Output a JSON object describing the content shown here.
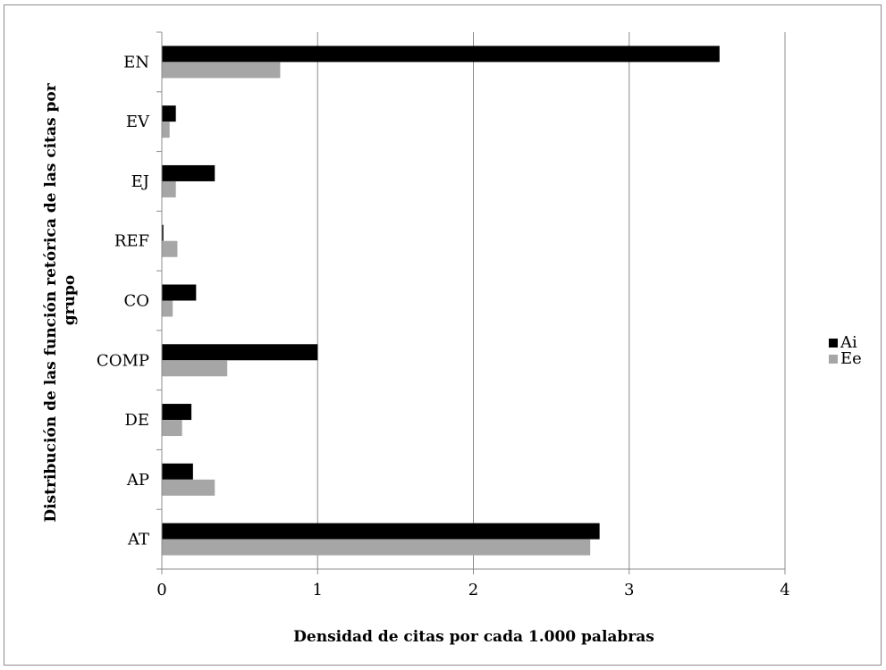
{
  "chart_data": {
    "type": "bar",
    "orientation": "horizontal",
    "categories": [
      "EN",
      "EV",
      "EJ",
      "REF",
      "CO",
      "COMP",
      "DE",
      "AP",
      "AT"
    ],
    "series": [
      {
        "name": "Ai",
        "color": "#000000",
        "values": [
          3.58,
          0.09,
          0.34,
          0.01,
          0.22,
          1.0,
          0.19,
          0.2,
          2.81
        ]
      },
      {
        "name": "Ee",
        "color": "#a6a6a6",
        "values": [
          0.76,
          0.05,
          0.09,
          0.1,
          0.07,
          0.42,
          0.13,
          0.34,
          2.75
        ]
      }
    ],
    "xlabel": "Densidad de citas por cada 1.000 palabras",
    "ylabel": "Distribución de las función retórica  de las citas por grupo",
    "xlim": [
      0,
      4
    ],
    "xticks": [
      "0",
      "1",
      "2",
      "3",
      "4"
    ],
    "grid": "vertical",
    "legend": "right"
  }
}
